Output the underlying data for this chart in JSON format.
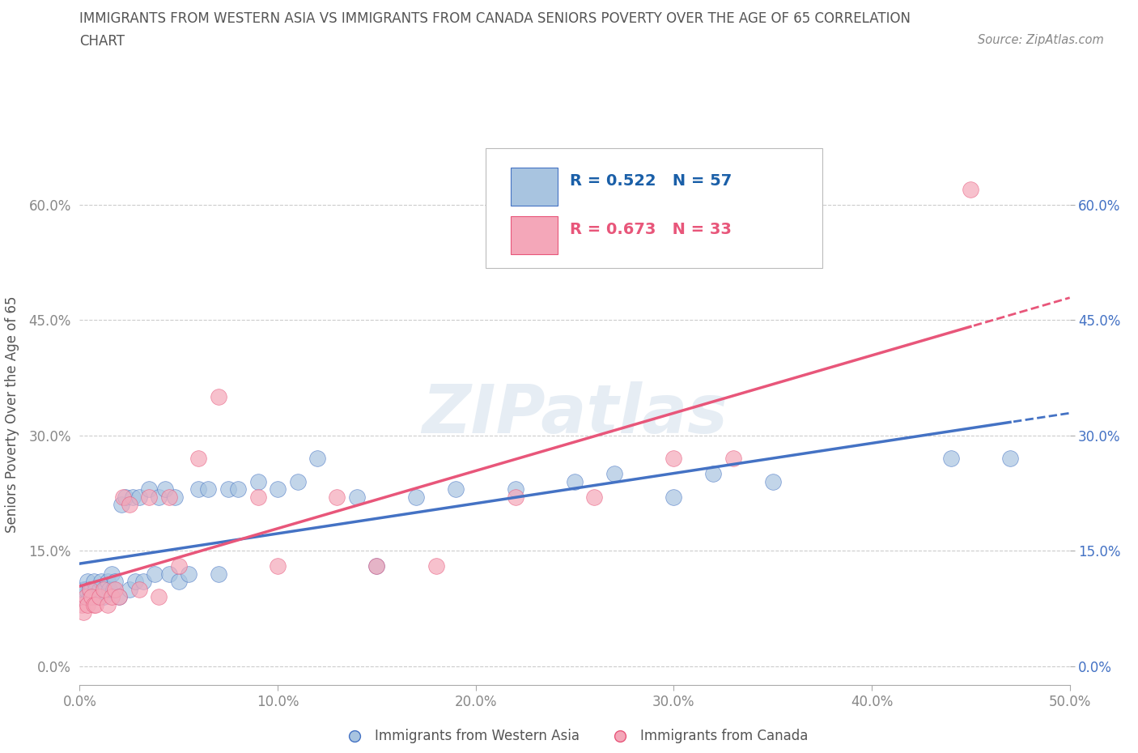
{
  "title_line1": "IMMIGRANTS FROM WESTERN ASIA VS IMMIGRANTS FROM CANADA SENIORS POVERTY OVER THE AGE OF 65 CORRELATION",
  "title_line2": "CHART",
  "source_text": "Source: ZipAtlas.com",
  "ylabel": "Seniors Poverty Over the Age of 65",
  "xlim": [
    0.0,
    0.5
  ],
  "ylim": [
    -0.025,
    0.68
  ],
  "yticks": [
    0.0,
    0.15,
    0.3,
    0.45,
    0.6
  ],
  "ytick_labels": [
    "0.0%",
    "15.0%",
    "30.0%",
    "45.0%",
    "60.0%"
  ],
  "xticks": [
    0.0,
    0.1,
    0.2,
    0.3,
    0.4,
    0.5
  ],
  "xtick_labels": [
    "0.0%",
    "10.0%",
    "20.0%",
    "30.0%",
    "40.0%",
    "50.0%"
  ],
  "watermark": "ZIPatlas",
  "series": [
    {
      "label": "Immigrants from Western Asia",
      "color": "#a8c4e0",
      "line_color": "#4472c4",
      "R": 0.522,
      "N": 57,
      "x": [
        0.001,
        0.002,
        0.003,
        0.004,
        0.005,
        0.005,
        0.006,
        0.007,
        0.007,
        0.008,
        0.009,
        0.01,
        0.011,
        0.012,
        0.013,
        0.014,
        0.015,
        0.016,
        0.017,
        0.018,
        0.02,
        0.021,
        0.023,
        0.025,
        0.027,
        0.028,
        0.03,
        0.032,
        0.035,
        0.038,
        0.04,
        0.043,
        0.045,
        0.048,
        0.05,
        0.055,
        0.06,
        0.065,
        0.07,
        0.075,
        0.08,
        0.09,
        0.1,
        0.11,
        0.12,
        0.14,
        0.15,
        0.17,
        0.19,
        0.22,
        0.25,
        0.27,
        0.3,
        0.32,
        0.35,
        0.44,
        0.47
      ],
      "y": [
        0.09,
        0.1,
        0.1,
        0.11,
        0.09,
        0.1,
        0.1,
        0.09,
        0.11,
        0.1,
        0.09,
        0.1,
        0.11,
        0.09,
        0.1,
        0.11,
        0.1,
        0.12,
        0.1,
        0.11,
        0.09,
        0.21,
        0.22,
        0.1,
        0.22,
        0.11,
        0.22,
        0.11,
        0.23,
        0.12,
        0.22,
        0.23,
        0.12,
        0.22,
        0.11,
        0.12,
        0.23,
        0.23,
        0.12,
        0.23,
        0.23,
        0.24,
        0.23,
        0.24,
        0.27,
        0.22,
        0.13,
        0.22,
        0.23,
        0.23,
        0.24,
        0.25,
        0.22,
        0.25,
        0.24,
        0.27,
        0.27
      ]
    },
    {
      "label": "Immigrants from Canada",
      "color": "#f4a7b9",
      "line_color": "#e8567a",
      "R": 0.673,
      "N": 33,
      "x": [
        0.001,
        0.002,
        0.003,
        0.004,
        0.005,
        0.006,
        0.007,
        0.008,
        0.01,
        0.012,
        0.014,
        0.016,
        0.018,
        0.02,
        0.022,
        0.025,
        0.03,
        0.035,
        0.04,
        0.045,
        0.05,
        0.06,
        0.07,
        0.09,
        0.1,
        0.13,
        0.15,
        0.18,
        0.22,
        0.26,
        0.3,
        0.33,
        0.45
      ],
      "y": [
        0.08,
        0.07,
        0.09,
        0.08,
        0.1,
        0.09,
        0.08,
        0.08,
        0.09,
        0.1,
        0.08,
        0.09,
        0.1,
        0.09,
        0.22,
        0.21,
        0.1,
        0.22,
        0.09,
        0.22,
        0.13,
        0.27,
        0.35,
        0.22,
        0.13,
        0.22,
        0.13,
        0.13,
        0.22,
        0.22,
        0.27,
        0.27,
        0.62
      ]
    }
  ],
  "legend_R_color": "#1a5fa8",
  "title_color": "#555555",
  "axis_label_color": "#555555",
  "tick_color": "#888888",
  "right_tick_color": "#4472c4",
  "gridline_color": "#cccccc",
  "background_color": "#ffffff"
}
